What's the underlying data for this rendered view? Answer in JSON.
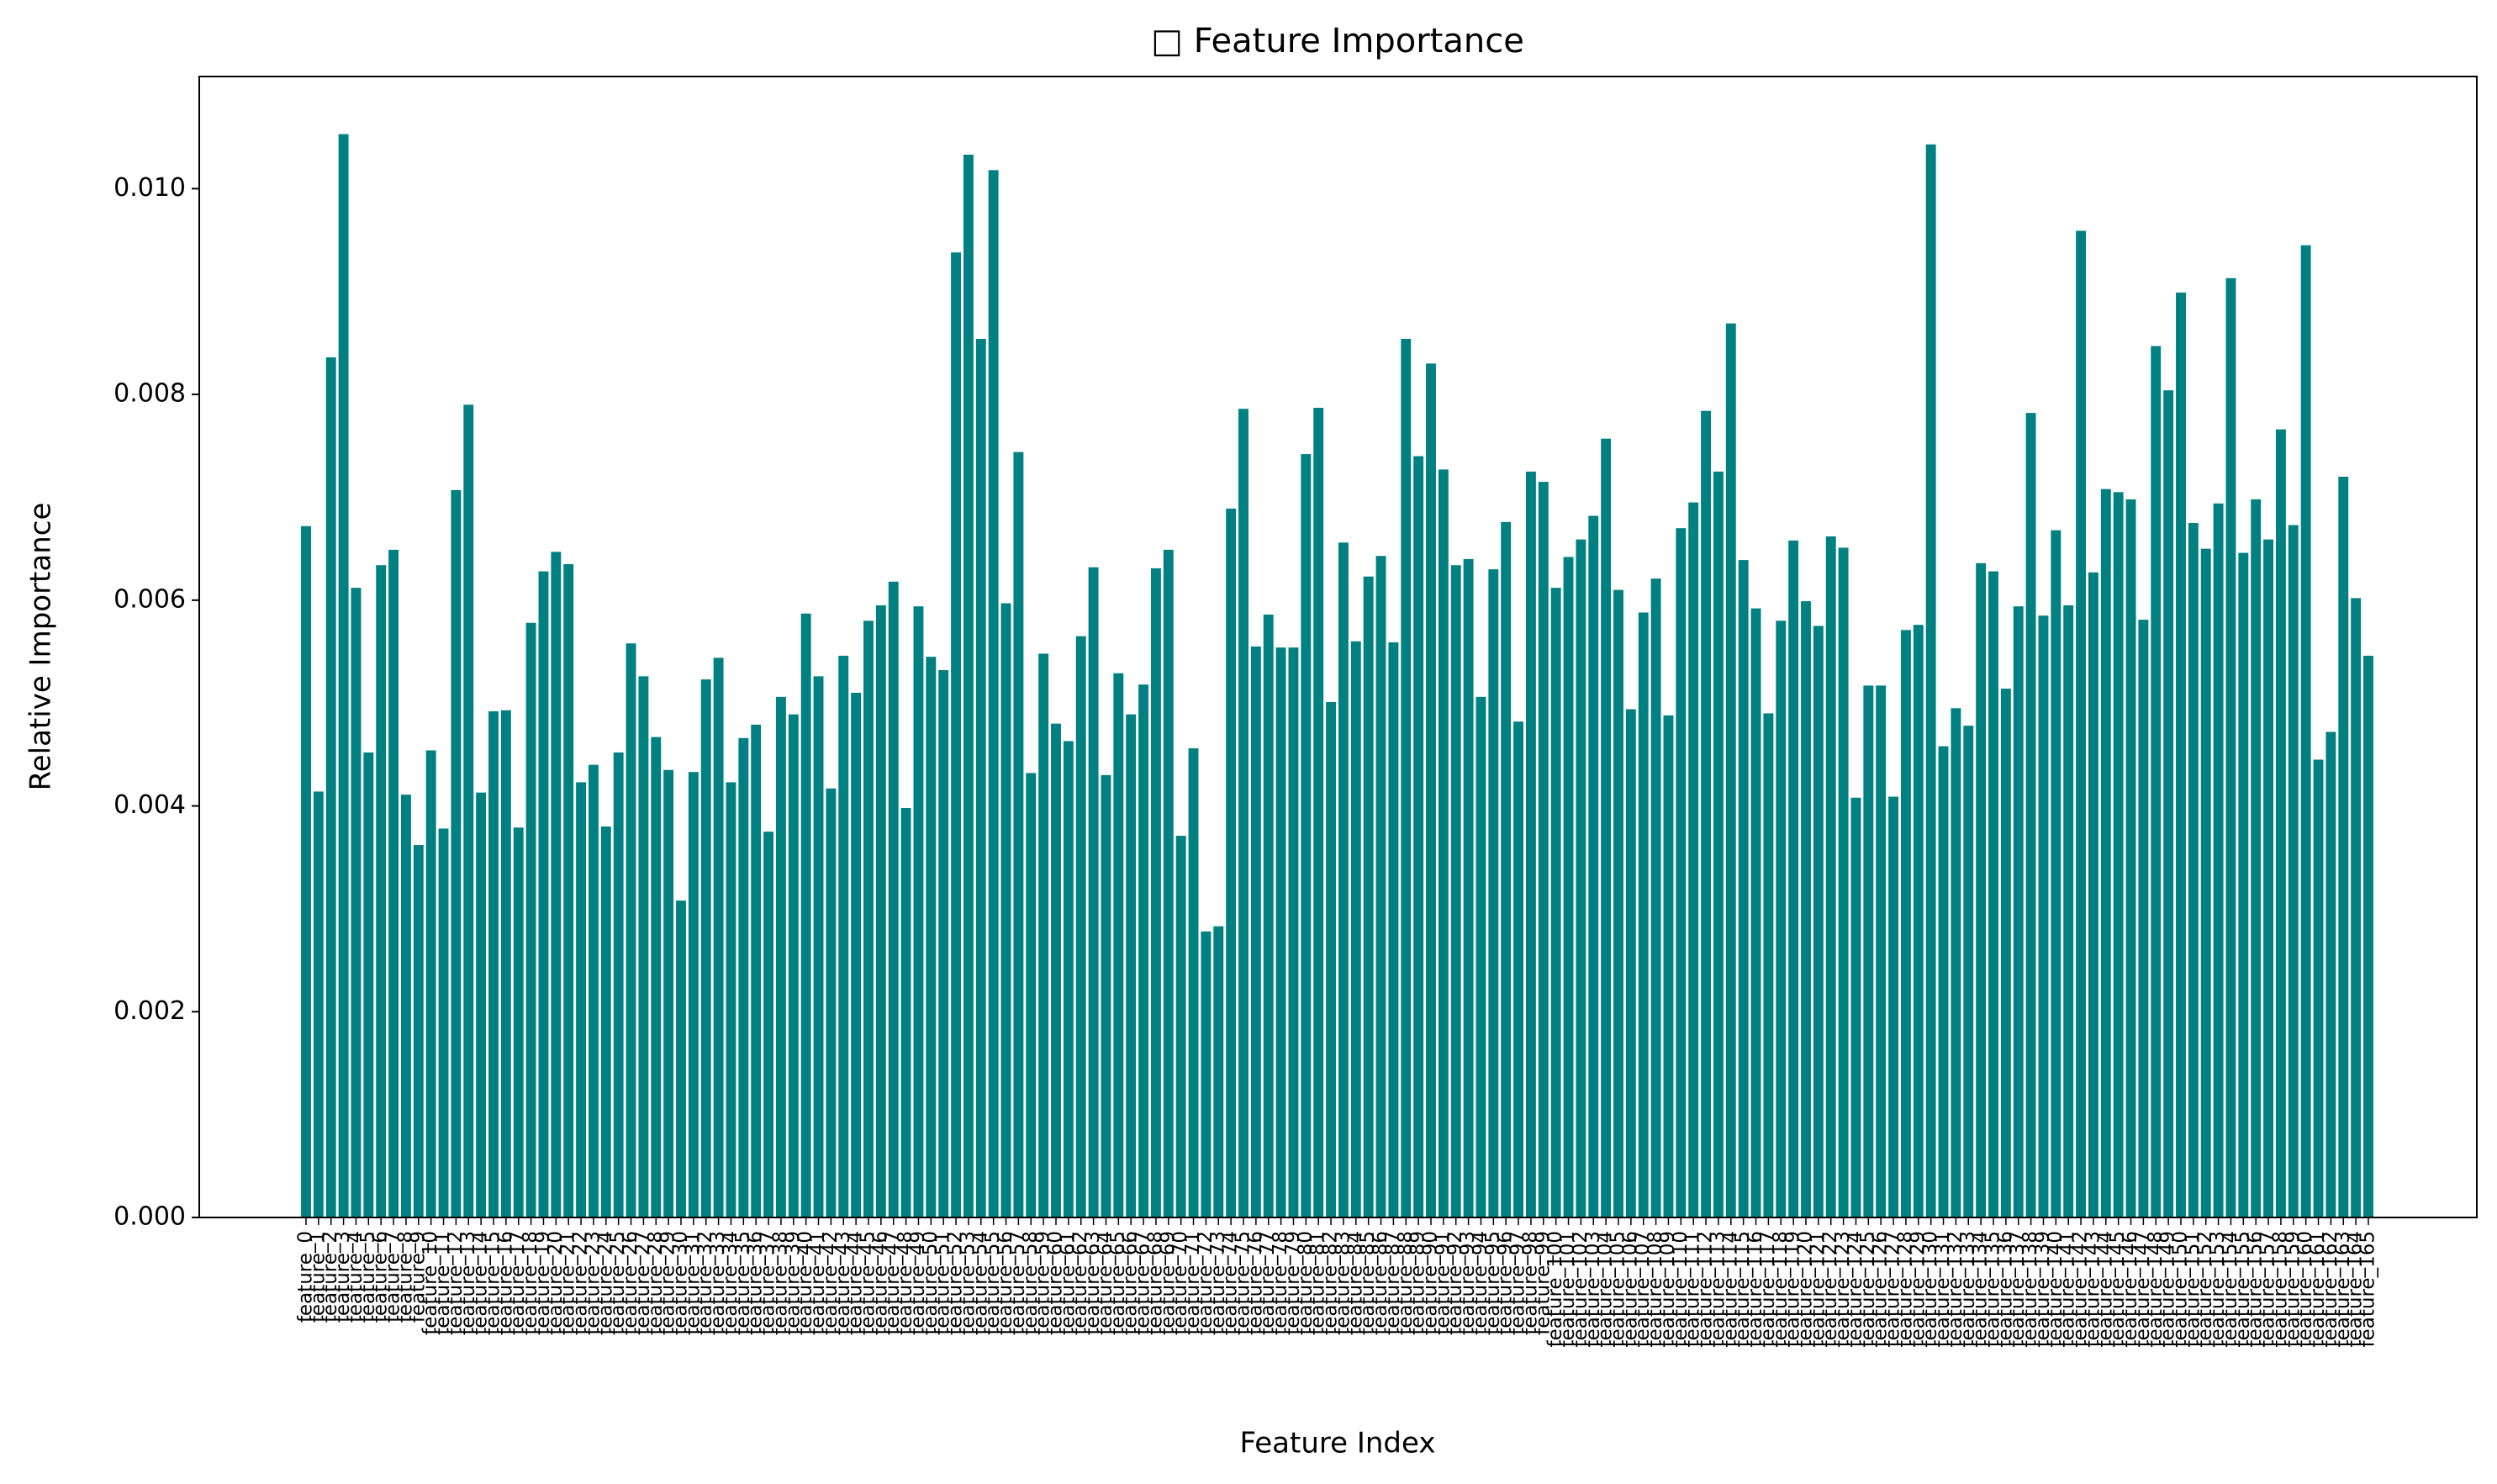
{
  "chart_data": {
    "type": "bar",
    "title": "□ Feature Importance",
    "xlabel": "Feature Index",
    "ylabel": "Relative Importance",
    "categories": [
      "feature_0",
      "feature_1",
      "feature_2",
      "feature_3",
      "feature_4",
      "feature_5",
      "feature_6",
      "feature_7",
      "feature_8",
      "feature_9",
      "feature_10",
      "feature_11",
      "feature_12",
      "feature_13",
      "feature_14",
      "feature_15",
      "feature_16",
      "feature_17",
      "feature_18",
      "feature_19",
      "feature_20",
      "feature_21",
      "feature_22",
      "feature_23",
      "feature_24",
      "feature_25",
      "feature_26",
      "feature_27",
      "feature_28",
      "feature_29",
      "feature_30",
      "feature_31",
      "feature_32",
      "feature_33",
      "feature_34",
      "feature_35",
      "feature_36",
      "feature_37",
      "feature_38",
      "feature_39",
      "feature_40",
      "feature_41",
      "feature_42",
      "feature_43",
      "feature_44",
      "feature_45",
      "feature_46",
      "feature_47",
      "feature_48",
      "feature_49",
      "feature_50",
      "feature_51",
      "feature_52",
      "feature_53",
      "feature_54",
      "feature_55",
      "feature_56",
      "feature_57",
      "feature_58",
      "feature_59",
      "feature_60",
      "feature_61",
      "feature_62",
      "feature_63",
      "feature_64",
      "feature_65",
      "feature_66",
      "feature_67",
      "feature_68",
      "feature_69",
      "feature_70",
      "feature_71",
      "feature_72",
      "feature_73",
      "feature_74",
      "feature_75",
      "feature_76",
      "feature_77",
      "feature_78",
      "feature_79",
      "feature_80",
      "feature_81",
      "feature_82",
      "feature_83",
      "feature_84",
      "feature_85",
      "feature_86",
      "feature_87",
      "feature_88",
      "feature_89",
      "feature_90",
      "feature_91",
      "feature_92",
      "feature_93",
      "feature_94",
      "feature_95",
      "feature_96",
      "feature_97",
      "feature_98",
      "feature_99",
      "feature_100",
      "feature_101",
      "feature_102",
      "feature_103",
      "feature_104",
      "feature_105",
      "feature_106",
      "feature_107",
      "feature_108",
      "feature_109",
      "feature_110",
      "feature_111",
      "feature_112",
      "feature_113",
      "feature_114",
      "feature_115",
      "feature_116",
      "feature_117",
      "feature_118",
      "feature_119",
      "feature_120",
      "feature_121",
      "feature_122",
      "feature_123",
      "feature_124",
      "feature_125",
      "feature_126",
      "feature_127",
      "feature_128",
      "feature_129",
      "feature_130",
      "feature_131",
      "feature_132",
      "feature_133",
      "feature_134",
      "feature_135",
      "feature_136",
      "feature_137",
      "feature_138",
      "feature_139",
      "feature_140",
      "feature_141",
      "feature_142",
      "feature_143",
      "feature_144",
      "feature_145",
      "feature_146",
      "feature_147",
      "feature_148",
      "feature_149",
      "feature_150",
      "feature_151",
      "feature_152",
      "feature_153",
      "feature_154",
      "feature_155",
      "feature_156",
      "feature_157",
      "feature_158",
      "feature_159",
      "feature_160",
      "feature_161",
      "feature_162",
      "feature_163",
      "feature_164",
      "feature_165"
    ],
    "values": [
      0.00672,
      0.00414,
      0.00836,
      0.01053,
      0.00612,
      0.00452,
      0.00634,
      0.00649,
      0.00411,
      0.00362,
      0.00454,
      0.00378,
      0.00707,
      0.0079,
      0.00413,
      0.00492,
      0.00493,
      0.00379,
      0.00578,
      0.00628,
      0.00647,
      0.00635,
      0.00423,
      0.0044,
      0.0038,
      0.00452,
      0.00558,
      0.00526,
      0.00467,
      0.00435,
      0.00308,
      0.00433,
      0.00523,
      0.00544,
      0.00423,
      0.00466,
      0.00479,
      0.00375,
      0.00506,
      0.00489,
      0.00587,
      0.00526,
      0.00417,
      0.00546,
      0.0051,
      0.0058,
      0.00595,
      0.00618,
      0.00398,
      0.00594,
      0.00545,
      0.00532,
      0.00938,
      0.01033,
      0.00854,
      0.01018,
      0.00597,
      0.00744,
      0.00432,
      0.00548,
      0.0048,
      0.00463,
      0.00565,
      0.00632,
      0.0043,
      0.00529,
      0.00489,
      0.00518,
      0.00631,
      0.00649,
      0.00371,
      0.00456,
      0.00278,
      0.00283,
      0.00689,
      0.00786,
      0.00555,
      0.00586,
      0.00554,
      0.00554,
      0.00742,
      0.00787,
      0.00501,
      0.00656,
      0.0056,
      0.00623,
      0.00643,
      0.00559,
      0.00854,
      0.0074,
      0.0083,
      0.00727,
      0.00634,
      0.0064,
      0.00506,
      0.0063,
      0.00676,
      0.00482,
      0.00725,
      0.00715,
      0.00612,
      0.00642,
      0.00659,
      0.00682,
      0.00757,
      0.0061,
      0.00494,
      0.00588,
      0.00621,
      0.00488,
      0.0067,
      0.00695,
      0.00784,
      0.00725,
      0.00869,
      0.00639,
      0.00592,
      0.0049,
      0.0058,
      0.00658,
      0.00599,
      0.00575,
      0.00662,
      0.00651,
      0.00408,
      0.00517,
      0.00517,
      0.00409,
      0.00571,
      0.00576,
      0.01043,
      0.00458,
      0.00495,
      0.00478,
      0.00636,
      0.00628,
      0.00514,
      0.00594,
      0.00782,
      0.00585,
      0.00668,
      0.00595,
      0.00959,
      0.00627,
      0.00708,
      0.00705,
      0.00698,
      0.00581,
      0.00847,
      0.00804,
      0.00899,
      0.00675,
      0.0065,
      0.00694,
      0.00913,
      0.00646,
      0.00698,
      0.00659,
      0.00766,
      0.00673,
      0.00945,
      0.00445,
      0.00472,
      0.0072,
      0.00602,
      0.00546
    ],
    "color": "#008080",
    "ylim": [
      0,
      0.01109
    ],
    "yticks": [
      {
        "value": 0,
        "label": "0.000"
      },
      {
        "value": 0.002,
        "label": "0.002"
      },
      {
        "value": 0.004,
        "label": "0.004"
      },
      {
        "value": 0.006,
        "label": "0.006"
      },
      {
        "value": 0.008,
        "label": "0.008"
      },
      {
        "value": 0.01,
        "label": "0.010"
      }
    ],
    "grid": false
  }
}
